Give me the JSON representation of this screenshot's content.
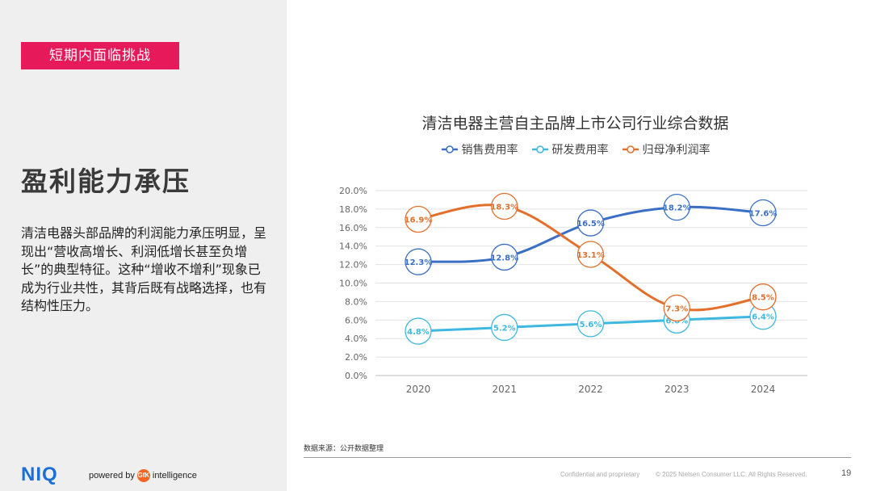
{
  "slide": {
    "tag": "短期内面临挑战",
    "heading": "盈利能力承压",
    "body": "清洁电器头部品牌的利润能力承压明显，呈现出“营收高增长、利润低增长甚至负增长”的典型特征。这种“增收不增利”现象已成为行业共性，其背后既有战略选择，也有结构性压力。",
    "source": "数据来源：公开数据整理",
    "footer_left": "Confidential and proprietary",
    "footer_right": "© 2025 Nielsen Consumer LLC. All Rights Reserved.",
    "page_number": "19"
  },
  "brand": {
    "logo": "NIQ",
    "powered_by": "powered by",
    "gfk": "GfK",
    "intelligence": "intelligence"
  },
  "colors": {
    "accent": "#e6195a",
    "logo": "#1a6fd6",
    "sales_expense": "#3a6fc4",
    "rd_expense": "#3fb8e0",
    "net_margin": "#e2702c"
  },
  "chart_data": {
    "type": "line",
    "title": "清洁电器主营自主品牌上市公司行业综合数据",
    "categories": [
      "2020",
      "2021",
      "2022",
      "2023",
      "2024"
    ],
    "ylim": [
      0,
      20
    ],
    "yticks": [
      "0.0%",
      "2.0%",
      "4.0%",
      "6.0%",
      "8.0%",
      "10.0%",
      "12.0%",
      "14.0%",
      "16.0%",
      "18.0%",
      "20.0%"
    ],
    "grid": true,
    "legend_position": "top",
    "series": [
      {
        "name": "销售费用率",
        "color": "#3a6fc4",
        "values": [
          12.3,
          12.8,
          16.5,
          18.2,
          17.6
        ],
        "labels": [
          "12.3%",
          "12.8%",
          "16.5%",
          "18.2%",
          "17.6%"
        ]
      },
      {
        "name": "研发费用率",
        "color": "#3fb8e0",
        "values": [
          4.8,
          5.2,
          5.6,
          6.0,
          6.4
        ],
        "labels": [
          "4.8%",
          "5.2%",
          "5.6%",
          "6.0%",
          "6.4%"
        ]
      },
      {
        "name": "归母净利润率",
        "color": "#e2702c",
        "values": [
          16.9,
          18.3,
          13.1,
          7.3,
          8.5
        ],
        "labels": [
          "16.9%",
          "18.3%",
          "13.1%",
          "7.3%",
          "8.5%"
        ]
      }
    ]
  }
}
